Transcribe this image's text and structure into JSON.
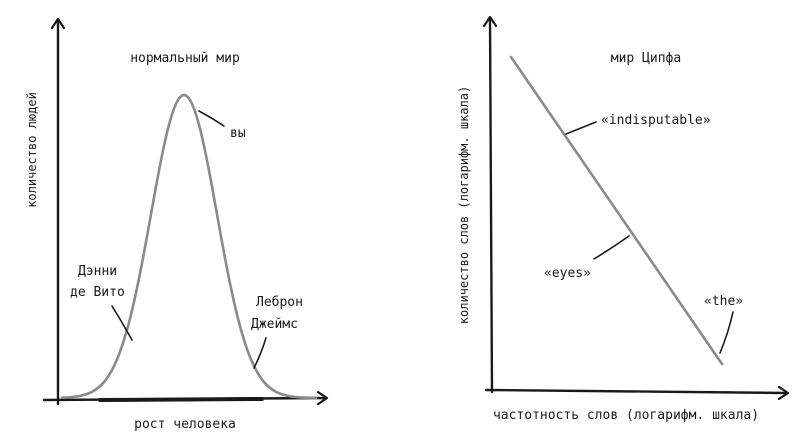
{
  "left": {
    "title": "нормальный мир",
    "ylabel": "количество людей",
    "xlabel": "рост человека",
    "annotations": {
      "you": "вы",
      "danny_line1": "Дэнни",
      "danny_line2": "де Вито",
      "lebron_line1": "Леброн",
      "lebron_line2": "Джеймс"
    }
  },
  "right": {
    "title": "мир Ципфа",
    "ylabel": "количество слов (логарифм. шкала)",
    "xlabel": "частотность слов (логарифм. шкала)",
    "annotations": {
      "indisputable": "«indisputable»",
      "eyes": "«eyes»",
      "the": "«the»"
    }
  },
  "colors": {
    "ink": "#1a1a1a",
    "curve": "#8a8a8a"
  }
}
